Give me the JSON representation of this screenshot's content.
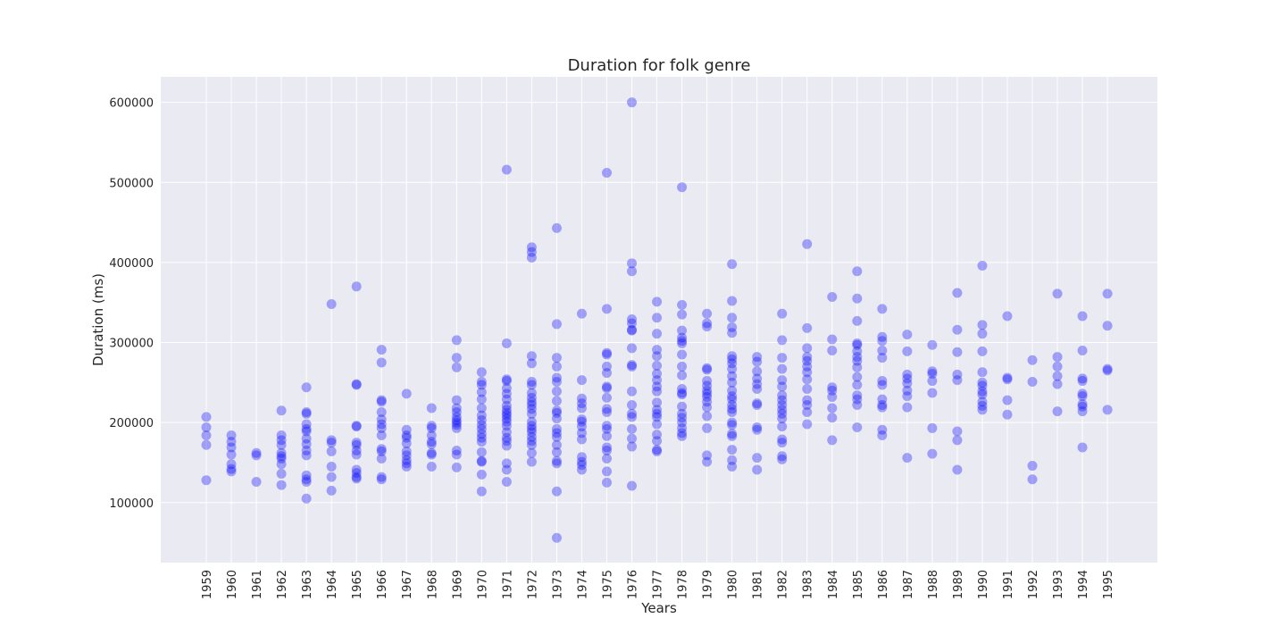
{
  "chart_data": {
    "type": "scatter",
    "title": "Duration for folk genre",
    "xlabel": "Years",
    "ylabel": "Duration (ms)",
    "x_categories": [
      "1959",
      "1960",
      "1961",
      "1962",
      "1963",
      "1964",
      "1965",
      "1966",
      "1967",
      "1968",
      "1969",
      "1970",
      "1971",
      "1972",
      "1973",
      "1974",
      "1975",
      "1976",
      "1977",
      "1978",
      "1979",
      "1980",
      "1981",
      "1982",
      "1983",
      "1984",
      "1985",
      "1986",
      "1987",
      "1988",
      "1989",
      "1990",
      "1991",
      "1992",
      "1993",
      "1994",
      "1995"
    ],
    "yticks": [
      100000,
      200000,
      300000,
      400000,
      500000,
      600000
    ],
    "ytick_labels": [
      "100000",
      "200000",
      "300000",
      "400000",
      "500000",
      "600000"
    ],
    "ylim": [
      25000,
      632000
    ],
    "grid": true,
    "colors": {
      "background": "#eaeaf2",
      "grid": "#ffffff",
      "marker": "#0000ff",
      "marker_opacity": 0.33
    },
    "series": [
      {
        "points": [
          {
            "x": "1959",
            "y": [
              207000,
              194000,
              184000,
              172000,
              128000
            ]
          },
          {
            "x": "1960",
            "y": [
              184000,
              176000,
              169000,
              160000,
              148000,
              142000,
              139000
            ]
          },
          {
            "x": "1961",
            "y": [
              162000,
              159000,
              126000
            ]
          },
          {
            "x": "1962",
            "y": [
              215000,
              184000,
              178000,
              172000,
              162000,
              158000,
              155000,
              148000,
              136000,
              122000
            ]
          },
          {
            "x": "1963",
            "y": [
              244000,
              213000,
              211000,
              198000,
              192000,
              189000,
              180000,
              173000,
              165000,
              159000,
              134000,
              129000,
              126000,
              105000
            ]
          },
          {
            "x": "1964",
            "y": [
              348000,
              178000,
              175000,
              164000,
              145000,
              132000,
              115000
            ]
          },
          {
            "x": "1965",
            "y": [
              370000,
              248000,
              247000,
              196000,
              195000,
              175000,
              172000,
              165000,
              160000,
              141000,
              137000,
              132000,
              130000
            ]
          },
          {
            "x": "1966",
            "y": [
              291000,
              275000,
              228000,
              226000,
              213000,
              204000,
              198000,
              193000,
              184000,
              167000,
              164000,
              155000,
              132000,
              129000
            ]
          },
          {
            "x": "1967",
            "y": [
              236000,
              191000,
              184000,
              181000,
              174000,
              164000,
              159000,
              153000,
              149000,
              145000
            ]
          },
          {
            "x": "1968",
            "y": [
              218000,
              196000,
              193000,
              184000,
              176000,
              173000,
              162000,
              160000,
              145000
            ]
          },
          {
            "x": "1969",
            "y": [
              303000,
              281000,
              269000,
              228000,
              218000,
              213000,
              207000,
              203000,
              200000,
              197000,
              193000,
              165000,
              160000,
              144000
            ]
          },
          {
            "x": "1970",
            "y": [
              263000,
              251000,
              247000,
              238000,
              229000,
              218000,
              209000,
              203000,
              197000,
              192000,
              186000,
              181000,
              176000,
              163000,
              152000,
              151000,
              135000,
              114000
            ]
          },
          {
            "x": "1971",
            "y": [
              516000,
              299000,
              254000,
              252000,
              243000,
              236000,
              229000,
              221000,
              216000,
              212000,
              209000,
              205000,
              201000,
              196000,
              188000,
              181000,
              177000,
              171000,
              149000,
              141000,
              126000
            ]
          },
          {
            "x": "1972",
            "y": [
              419000,
              413000,
              406000,
              283000,
              274000,
              251000,
              247000,
              237000,
              231000,
              226000,
              222000,
              217000,
              211000,
              201000,
              196000,
              192000,
              188000,
              182000,
              177000,
              172000,
              162000,
              151000
            ]
          },
          {
            "x": "1973",
            "y": [
              443000,
              323000,
              281000,
              270000,
              256000,
              251000,
              239000,
              227000,
              215000,
              212000,
              205000,
              192000,
              187000,
              182000,
              172000,
              163000,
              152000,
              149000,
              114000,
              56000
            ]
          },
          {
            "x": "1974",
            "y": [
              336000,
              253000,
              230000,
              224000,
              218000,
              204000,
              201000,
              195000,
              187000,
              179000,
              157000,
              151000,
              147000,
              141000
            ]
          },
          {
            "x": "1975",
            "y": [
              512000,
              342000,
              287000,
              285000,
              270000,
              262000,
              245000,
              243000,
              231000,
              217000,
              213000,
              196000,
              192000,
              183000,
              169000,
              165000,
              155000,
              139000,
              125000
            ]
          },
          {
            "x": "1976",
            "y": [
              600000,
              399000,
              389000,
              329000,
              324000,
              316000,
              315000,
              293000,
              272000,
              270000,
              239000,
              222000,
              211000,
              207000,
              192000,
              180000,
              170000,
              121000
            ]
          },
          {
            "x": "1977",
            "y": [
              351000,
              331000,
              311000,
              291000,
              283000,
              271000,
              261000,
              253000,
              245000,
              239000,
              225000,
              216000,
              211000,
              207000,
              198000,
              185000,
              177000,
              166000,
              164000
            ]
          },
          {
            "x": "1978",
            "y": [
              494000,
              347000,
              335000,
              315000,
              306000,
              302000,
              299000,
              285000,
              270000,
              259000,
              242000,
              237000,
              235000,
              220000,
              211000,
              206000,
              200000,
              193000,
              187000,
              183000
            ]
          },
          {
            "x": "1979",
            "y": [
              336000,
              324000,
              320000,
              268000,
              266000,
              252000,
              246000,
              240000,
              236000,
              232000,
              226000,
              219000,
              208000,
              193000,
              159000,
              151000
            ]
          },
          {
            "x": "1980",
            "y": [
              398000,
              352000,
              331000,
              319000,
              312000,
              283000,
              279000,
              274000,
              267000,
              258000,
              250000,
              240000,
              233000,
              229000,
              222000,
              217000,
              213000,
              200000,
              197000,
              186000,
              183000,
              166000,
              153000,
              145000
            ]
          },
          {
            "x": "1981",
            "y": [
              282000,
              276000,
              264000,
              255000,
              248000,
              242000,
              224000,
              222000,
              194000,
              191000,
              156000,
              141000
            ]
          },
          {
            "x": "1982",
            "y": [
              336000,
              303000,
              281000,
              267000,
              253000,
              245000,
              234000,
              228000,
              222000,
              216000,
              211000,
              205000,
              195000,
              179000,
              175000,
              158000,
              154000
            ]
          },
          {
            "x": "1983",
            "y": [
              423000,
              318000,
              293000,
              282000,
              277000,
              270000,
              263000,
              254000,
              242000,
              228000,
              222000,
              213000,
              198000
            ]
          },
          {
            "x": "1984",
            "y": [
              357000,
              304000,
              290000,
              244000,
              240000,
              232000,
              218000,
              206000,
              178000
            ]
          },
          {
            "x": "1985",
            "y": [
              389000,
              355000,
              327000,
              299000,
              297000,
              289000,
              282000,
              277000,
              269000,
              257000,
              247000,
              234000,
              229000,
              222000,
              194000
            ]
          },
          {
            "x": "1986",
            "y": [
              342000,
              307000,
              302000,
              290000,
              281000,
              252000,
              247000,
              229000,
              222000,
              219000,
              191000,
              184000
            ]
          },
          {
            "x": "1987",
            "y": [
              310000,
              289000,
              260000,
              255000,
              249000,
              240000,
              233000,
              219000,
              156000
            ]
          },
          {
            "x": "1988",
            "y": [
              297000,
              264000,
              261000,
              252000,
              237000,
              193000,
              161000
            ]
          },
          {
            "x": "1989",
            "y": [
              362000,
              316000,
              288000,
              260000,
              253000,
              189000,
              178000,
              141000
            ]
          },
          {
            "x": "1990",
            "y": [
              396000,
              322000,
              311000,
              289000,
              263000,
              250000,
              246000,
              239000,
              235000,
              226000,
              221000,
              216000
            ]
          },
          {
            "x": "1991",
            "y": [
              333000,
              256000,
              254000,
              228000,
              210000
            ]
          },
          {
            "x": "1992",
            "y": [
              278000,
              251000,
              146000,
              129000
            ]
          },
          {
            "x": "1993",
            "y": [
              361000,
              282000,
              270000,
              258000,
              248000,
              214000
            ]
          },
          {
            "x": "1994",
            "y": [
              333000,
              290000,
              255000,
              252000,
              236000,
              233000,
              223000,
              220000,
              214000,
              169000
            ]
          },
          {
            "x": "1995",
            "y": [
              361000,
              321000,
              267000,
              265000,
              216000
            ]
          }
        ]
      }
    ]
  }
}
